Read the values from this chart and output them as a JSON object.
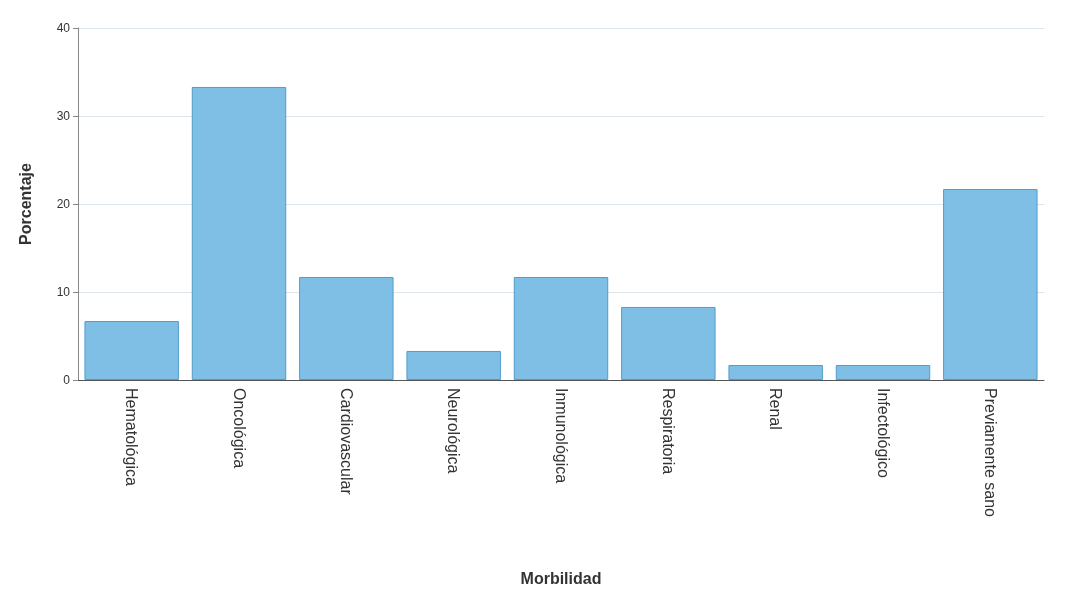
{
  "chart_data": {
    "type": "bar",
    "xlabel": "Morbilidad",
    "ylabel": "Porcentaje",
    "categories": [
      "Hematológica",
      "Oncológica",
      "Cardiovascular",
      "Neurológica",
      "Inmunológica",
      "Respiratoria",
      "Renal",
      "Infectológico",
      "Previamente sano"
    ],
    "values": [
      6.7,
      33.3,
      11.7,
      3.3,
      11.7,
      8.3,
      1.7,
      1.7,
      21.7
    ],
    "color": "#7fbfe6",
    "ylim": [
      0,
      40
    ],
    "yticks": [
      0,
      10,
      20,
      30,
      40
    ],
    "grid": "y"
  }
}
